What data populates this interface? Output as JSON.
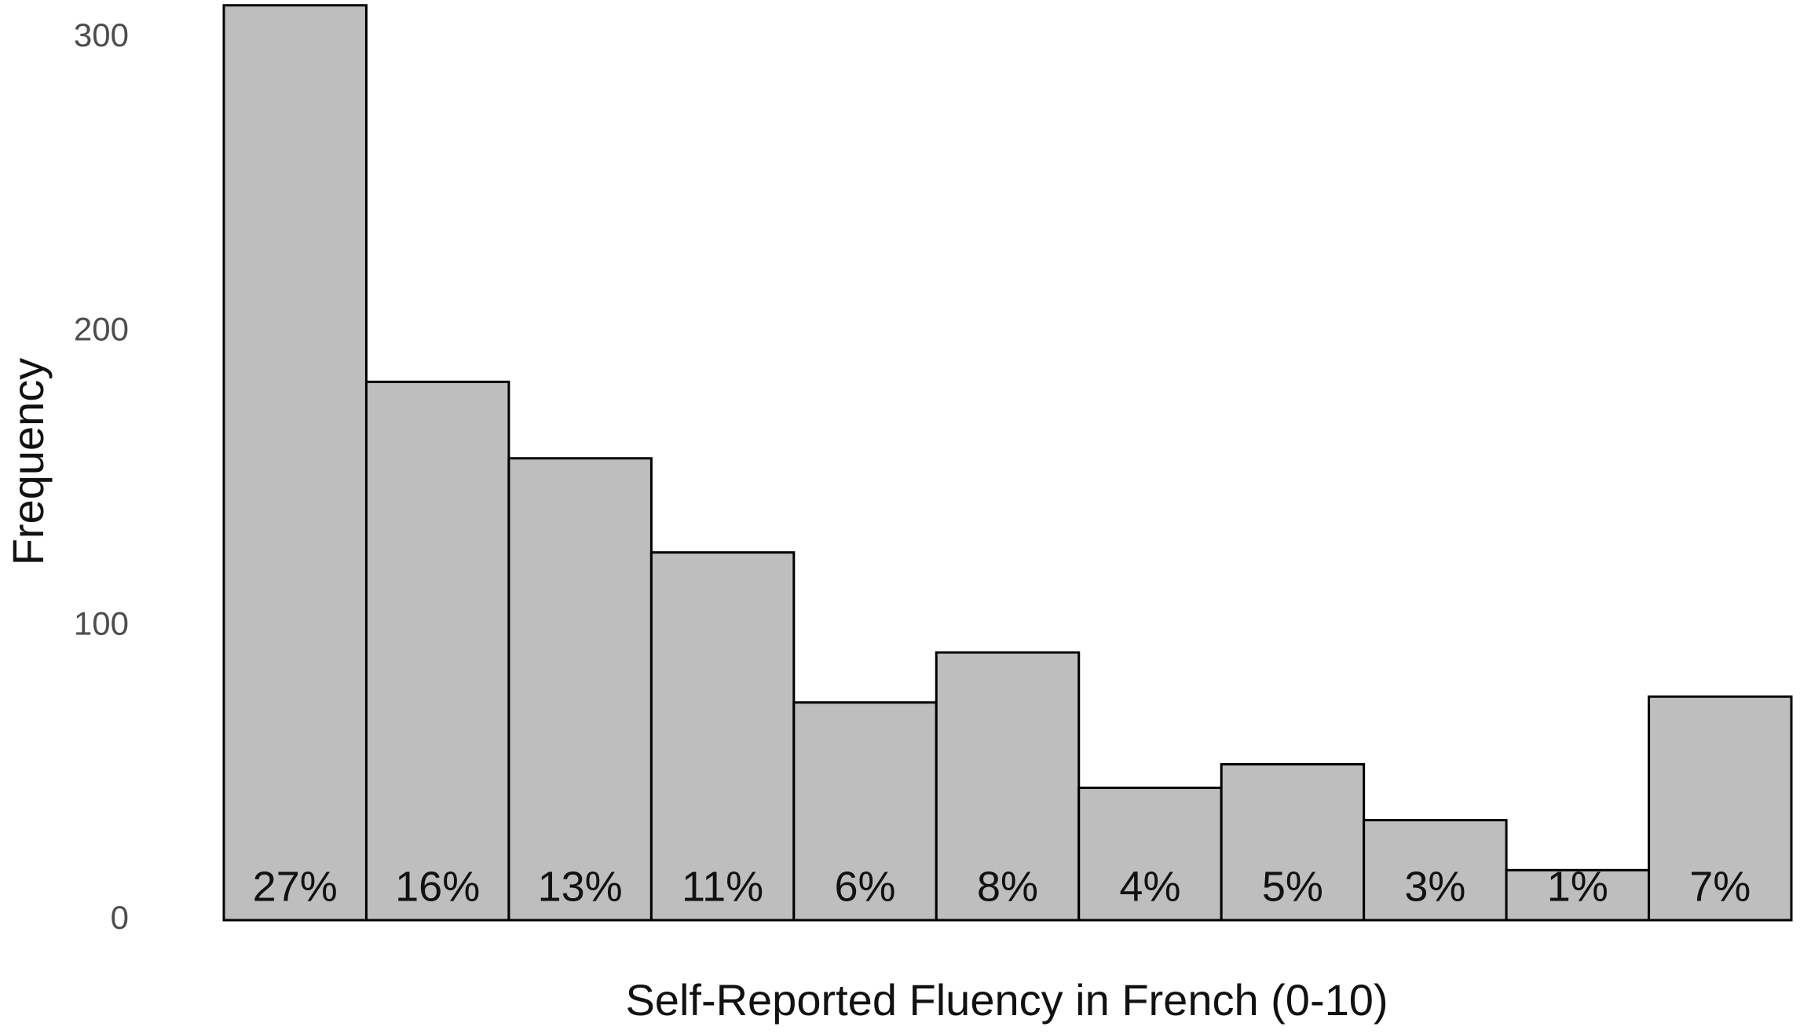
{
  "chart_data": {
    "type": "bar",
    "x_label": "Self-Reported Fluency in French (0-10)",
    "y_label": "Frequency",
    "categories": [
      null,
      null,
      null,
      null,
      null,
      null,
      null,
      null,
      null,
      null,
      null
    ],
    "values": [
      311,
      183,
      157,
      125,
      74,
      91,
      45,
      53,
      34,
      17,
      76
    ],
    "percent": {
      "values": [
        27,
        16,
        13,
        11,
        6,
        8,
        4,
        5,
        3,
        1,
        7
      ],
      "value_labels": [
        "27%",
        "16%",
        "13%",
        "11%",
        "6%",
        "8%",
        "4%",
        "5%",
        "3%",
        "1%",
        "7%"
      ]
    },
    "color": "#bebebe",
    "edge_color": "#000000",
    "ylim": [
      0,
      312
    ],
    "yticks": [
      0,
      100,
      200,
      300
    ],
    "grid": false
  }
}
